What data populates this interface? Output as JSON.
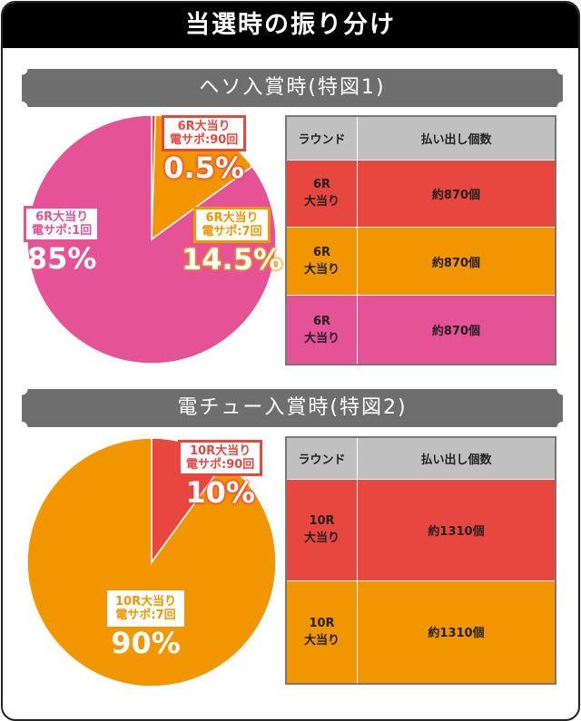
{
  "title": "当選時の振り分け",
  "colors": {
    "red": "#e8473f",
    "orange": "#f29600",
    "pink": "#e55295",
    "header": "#c0c0c0"
  },
  "sections": [
    {
      "banner": "ヘソ入賞時(特図1)",
      "table": {
        "headers": [
          "ラウンド",
          "払い出し個数"
        ],
        "rows": [
          {
            "round": "6R",
            "type": "大当り",
            "payout": "約870個",
            "color": "red"
          },
          {
            "round": "6R",
            "type": "大当り",
            "payout": "約870個",
            "color": "orange"
          },
          {
            "round": "6R",
            "type": "大当り",
            "payout": "約870個",
            "color": "pink"
          }
        ]
      }
    },
    {
      "banner": "電チュー入賞時(特図2)",
      "table": {
        "headers": [
          "ラウンド",
          "払い出し個数"
        ],
        "rows": [
          {
            "round": "10R",
            "type": "大当り",
            "payout": "約1310個",
            "color": "red"
          },
          {
            "round": "10R",
            "type": "大当り",
            "payout": "約1310個",
            "color": "orange"
          }
        ]
      }
    }
  ],
  "chart_data": [
    {
      "type": "pie",
      "slices": [
        {
          "label1": "6R大当り",
          "label2": "電サポ:90回",
          "pct_label": "0.5%",
          "value": 0.5,
          "color": "#e8473f"
        },
        {
          "label1": "6R大当り",
          "label2": "電サポ:7回",
          "pct_label": "14.5%",
          "value": 14.5,
          "color": "#f29600"
        },
        {
          "label1": "6R大当り",
          "label2": "電サポ:1回",
          "pct_label": "85%",
          "value": 85,
          "color": "#e55295"
        }
      ]
    },
    {
      "type": "pie",
      "slices": [
        {
          "label1": "10R大当り",
          "label2": "電サポ:90回",
          "pct_label": "10%",
          "value": 10,
          "color": "#e8473f"
        },
        {
          "label1": "10R大当り",
          "label2": "電サポ:7回",
          "pct_label": "90%",
          "value": 90,
          "color": "#f29600"
        }
      ]
    }
  ]
}
